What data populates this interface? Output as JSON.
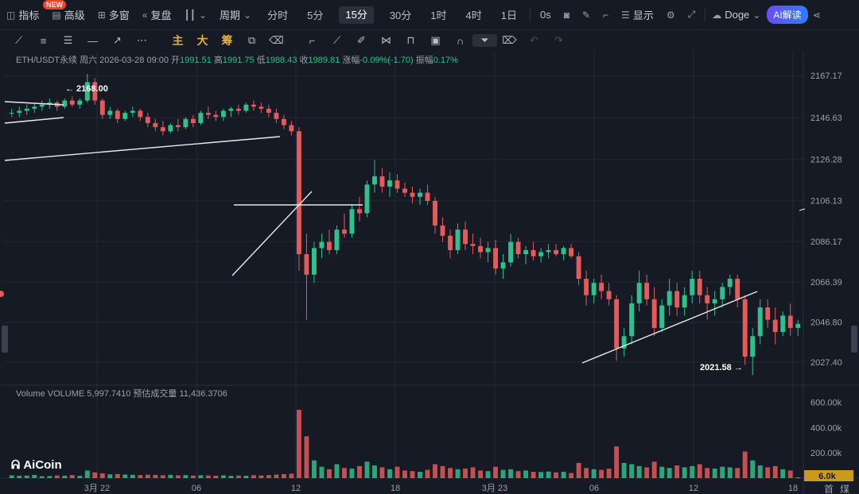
{
  "toolbar": {
    "items": [
      {
        "icon": "indicator-icon",
        "label": "指标"
      },
      {
        "icon": "advanced-icon",
        "label": "高级"
      },
      {
        "icon": "multi-window-icon",
        "label": "多窗"
      },
      {
        "icon": "replay-icon",
        "label": "复盘"
      }
    ],
    "new_badge": "NEW",
    "chart_type_icon": "candlestick-icon",
    "period_label": "周期",
    "timeframes": [
      "分时",
      "5分",
      "15分",
      "30分",
      "1时",
      "4时",
      "1日"
    ],
    "active_timeframe": "15分",
    "countdown": "0s",
    "display_label": "显示",
    "theme_label": "Doge",
    "ai_label": "AI解读"
  },
  "drawing_tools": {
    "tools": [
      "trend-line-icon",
      "horizontal-lines-icon",
      "parallel-lines-icon",
      "horizontal-line-icon",
      "ray-icon",
      "more-icon"
    ],
    "chinese_buttons": [
      "主",
      "大",
      "筹"
    ],
    "tools2": [
      "copy-icon",
      "eraser-icon",
      "measure-icon",
      "ruler-icon",
      "brush-icon",
      "pattern-icon",
      "lock-icon",
      "image-icon",
      "magnet-icon",
      "filter-icon",
      "trash-icon",
      "undo-icon",
      "redo-icon"
    ]
  },
  "legend": {
    "symbol": "ETH/USDT永续",
    "day": "周六",
    "datetime": "2026-03-28 09:00",
    "open_label": "开",
    "open": "1991.51",
    "high_label": "高",
    "high": "1991.75",
    "low_label": "低",
    "low": "1988.43",
    "close_label": "收",
    "close": "1989.81",
    "change_label": "涨幅",
    "change": "-0.09%(-1.70)",
    "amp_label": "振幅",
    "amp": "0.17%"
  },
  "volume_legend": {
    "name": "Volume",
    "volume_label": "VOLUME",
    "volume": "5,997.7410",
    "est_label": "预估成交量",
    "est": "11,436.3706"
  },
  "logo": "AiCoin",
  "colors": {
    "up": "#2ec08d",
    "down": "#e45b5b",
    "background": "#161a25",
    "grid": "#232836",
    "line": "#e8e8e8"
  },
  "chart_data": [
    {
      "type": "candlestick",
      "symbol": "ETH/USDT",
      "y_ticks": [
        "2167.17",
        "2146.63",
        "2126.28",
        "2106.13",
        "2086.17",
        "2066.39",
        "2046.80",
        "2027.40"
      ],
      "ylim": [
        2018,
        2175
      ],
      "x_ticks": [
        "3月 22",
        "06",
        "12",
        "18",
        "3月 23",
        "06",
        "12",
        "18"
      ],
      "annotations": [
        {
          "text": "← 2168.00",
          "x_tick_near": "3月 22",
          "value": 2168.0
        },
        {
          "text": "2021.58 →",
          "x_tick_near": "12",
          "value": 2021.58
        }
      ],
      "right_axis_extra": [
        "首",
        "煤"
      ],
      "ohlc": [
        [
          2149,
          2151,
          2147,
          2149
        ],
        [
          2149,
          2152,
          2147,
          2150
        ],
        [
          2150,
          2153,
          2148,
          2151
        ],
        [
          2151,
          2154,
          2149,
          2152
        ],
        [
          2152,
          2155,
          2150,
          2153
        ],
        [
          2153,
          2156,
          2151,
          2154
        ],
        [
          2154,
          2155,
          2150,
          2152
        ],
        [
          2152,
          2156,
          2151,
          2155
        ],
        [
          2155,
          2157,
          2152,
          2153
        ],
        [
          2153,
          2156,
          2151,
          2155
        ],
        [
          2155,
          2168,
          2154,
          2164
        ],
        [
          2164,
          2166,
          2153,
          2155
        ],
        [
          2155,
          2156,
          2146,
          2148
        ],
        [
          2148,
          2152,
          2146,
          2150
        ],
        [
          2150,
          2151,
          2144,
          2146
        ],
        [
          2146,
          2150,
          2145,
          2149
        ],
        [
          2149,
          2152,
          2147,
          2150
        ],
        [
          2150,
          2151,
          2145,
          2147
        ],
        [
          2147,
          2149,
          2142,
          2144
        ],
        [
          2144,
          2146,
          2140,
          2142
        ],
        [
          2142,
          2145,
          2138,
          2140
        ],
        [
          2140,
          2144,
          2139,
          2143
        ],
        [
          2143,
          2146,
          2140,
          2142
        ],
        [
          2142,
          2147,
          2141,
          2146
        ],
        [
          2146,
          2148,
          2142,
          2144
        ],
        [
          2144,
          2150,
          2143,
          2149
        ],
        [
          2149,
          2152,
          2146,
          2148
        ],
        [
          2148,
          2150,
          2145,
          2147
        ],
        [
          2147,
          2151,
          2145,
          2150
        ],
        [
          2150,
          2152,
          2147,
          2151
        ],
        [
          2151,
          2153,
          2148,
          2150
        ],
        [
          2150,
          2154,
          2149,
          2153
        ],
        [
          2153,
          2155,
          2150,
          2152
        ],
        [
          2152,
          2154,
          2149,
          2151
        ],
        [
          2151,
          2153,
          2147,
          2149
        ],
        [
          2149,
          2151,
          2144,
          2146
        ],
        [
          2146,
          2148,
          2141,
          2143
        ],
        [
          2143,
          2145,
          2138,
          2140
        ],
        [
          2140,
          2142,
          2072,
          2080
        ],
        [
          2080,
          2090,
          2048,
          2070
        ],
        [
          2070,
          2086,
          2066,
          2083
        ],
        [
          2083,
          2090,
          2078,
          2086
        ],
        [
          2086,
          2092,
          2080,
          2082
        ],
        [
          2082,
          2094,
          2080,
          2092
        ],
        [
          2092,
          2100,
          2088,
          2090
        ],
        [
          2090,
          2104,
          2088,
          2102
        ],
        [
          2102,
          2108,
          2096,
          2100
        ],
        [
          2100,
          2116,
          2098,
          2114
        ],
        [
          2114,
          2126,
          2110,
          2118
        ],
        [
          2118,
          2122,
          2110,
          2113
        ],
        [
          2113,
          2120,
          2108,
          2116
        ],
        [
          2116,
          2119,
          2110,
          2112
        ],
        [
          2112,
          2115,
          2108,
          2110
        ],
        [
          2110,
          2113,
          2105,
          2108
        ],
        [
          2108,
          2112,
          2104,
          2110
        ],
        [
          2110,
          2114,
          2104,
          2106
        ],
        [
          2106,
          2108,
          2090,
          2094
        ],
        [
          2094,
          2098,
          2086,
          2089
        ],
        [
          2089,
          2092,
          2078,
          2082
        ],
        [
          2082,
          2095,
          2080,
          2092
        ],
        [
          2092,
          2096,
          2082,
          2085
        ],
        [
          2085,
          2090,
          2080,
          2084
        ],
        [
          2084,
          2088,
          2078,
          2081
        ],
        [
          2081,
          2086,
          2076,
          2083
        ],
        [
          2083,
          2087,
          2070,
          2073
        ],
        [
          2073,
          2080,
          2068,
          2076
        ],
        [
          2076,
          2090,
          2074,
          2086
        ],
        [
          2086,
          2088,
          2078,
          2080
        ],
        [
          2080,
          2084,
          2075,
          2082
        ],
        [
          2082,
          2086,
          2077,
          2079
        ],
        [
          2079,
          2083,
          2076,
          2081
        ],
        [
          2081,
          2085,
          2078,
          2082
        ],
        [
          2082,
          2085,
          2079,
          2080
        ],
        [
          2080,
          2084,
          2077,
          2083
        ],
        [
          2083,
          2085,
          2078,
          2079
        ],
        [
          2079,
          2081,
          2065,
          2068
        ],
        [
          2068,
          2072,
          2055,
          2060
        ],
        [
          2060,
          2068,
          2056,
          2066
        ],
        [
          2066,
          2070,
          2058,
          2062
        ],
        [
          2062,
          2066,
          2055,
          2058
        ],
        [
          2058,
          2060,
          2028,
          2034
        ],
        [
          2034,
          2044,
          2030,
          2040
        ],
        [
          2040,
          2060,
          2036,
          2056
        ],
        [
          2056,
          2072,
          2052,
          2066
        ],
        [
          2066,
          2070,
          2055,
          2058
        ],
        [
          2058,
          2064,
          2040,
          2044
        ],
        [
          2044,
          2058,
          2042,
          2055
        ],
        [
          2055,
          2068,
          2050,
          2062
        ],
        [
          2062,
          2066,
          2050,
          2054
        ],
        [
          2054,
          2064,
          2050,
          2060
        ],
        [
          2060,
          2072,
          2056,
          2068
        ],
        [
          2068,
          2072,
          2056,
          2060
        ],
        [
          2060,
          2064,
          2048,
          2056
        ],
        [
          2056,
          2062,
          2050,
          2058
        ],
        [
          2058,
          2066,
          2054,
          2064
        ],
        [
          2064,
          2070,
          2060,
          2068
        ],
        [
          2068,
          2070,
          2054,
          2058
        ],
        [
          2058,
          2060,
          2026,
          2030
        ],
        [
          2030,
          2044,
          2021,
          2040
        ],
        [
          2040,
          2058,
          2036,
          2054
        ],
        [
          2054,
          2058,
          2044,
          2048
        ],
        [
          2048,
          2054,
          2036,
          2042
        ],
        [
          2042,
          2052,
          2040,
          2050
        ],
        [
          2050,
          2056,
          2040,
          2044
        ],
        [
          2044,
          2048,
          2040,
          2046
        ]
      ],
      "volume_ticks": [
        "600.00k",
        "400.00k",
        "200.00k"
      ],
      "volume_last": "6.0k",
      "volume_max": 640000,
      "volume": [
        22000,
        18000,
        20000,
        25000,
        15000,
        16000,
        21000,
        19000,
        24000,
        18000,
        60000,
        45000,
        38000,
        30000,
        32000,
        28000,
        26000,
        24000,
        27000,
        25000,
        23000,
        26000,
        22000,
        24000,
        20000,
        23000,
        21000,
        19000,
        22000,
        18000,
        20000,
        19000,
        23000,
        21000,
        24000,
        28000,
        32000,
        35000,
        540000,
        330000,
        140000,
        90000,
        70000,
        110000,
        80000,
        75000,
        95000,
        130000,
        100000,
        85000,
        70000,
        90000,
        60000,
        55000,
        50000,
        65000,
        110000,
        95000,
        80000,
        70000,
        75000,
        85000,
        60000,
        55000,
        90000,
        65000,
        70000,
        55000,
        60000,
        50000,
        48000,
        52000,
        45000,
        50000,
        40000,
        120000,
        80000,
        70000,
        65000,
        75000,
        250000,
        120000,
        110000,
        95000,
        85000,
        130000,
        90000,
        80000,
        100000,
        85000,
        95000,
        110000,
        80000,
        75000,
        90000,
        85000,
        80000,
        210000,
        140000,
        100000,
        85000,
        95000,
        70000,
        60000,
        6000
      ]
    }
  ]
}
